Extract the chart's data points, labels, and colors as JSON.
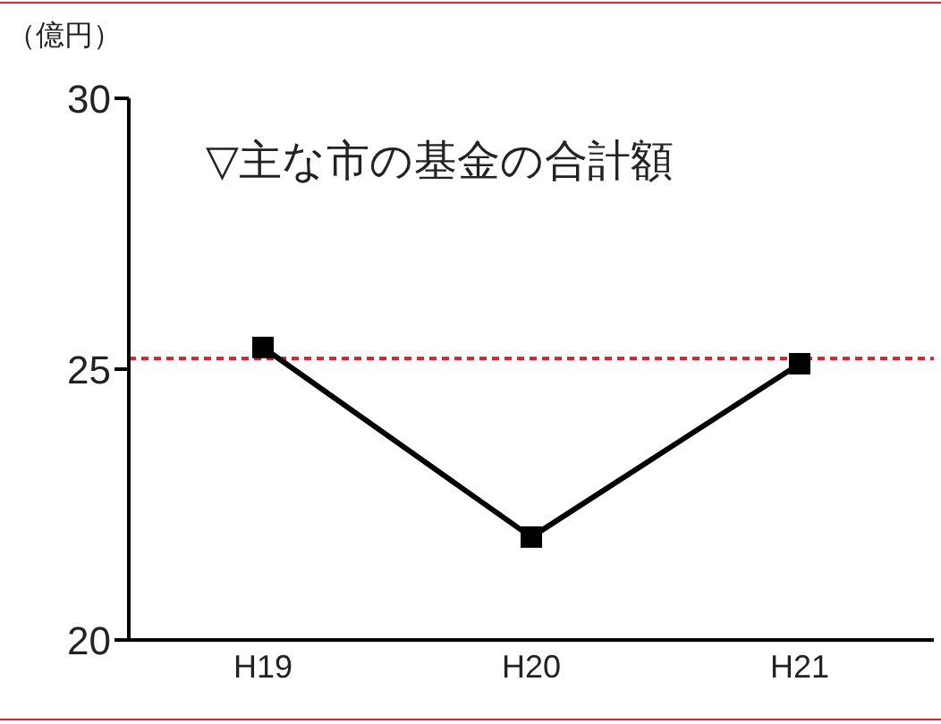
{
  "chart_data": {
    "type": "line",
    "title": "▽主な市の基金の合計額",
    "ylabel": "（億円）",
    "categories": [
      "H19",
      "H20",
      "H21"
    ],
    "series": [
      {
        "color": "#000000",
        "values": [
          25.4,
          21.9,
          25.1
        ]
      }
    ],
    "ylim": [
      20,
      30
    ],
    "yticks": [
      20,
      25,
      30
    ],
    "grid": false,
    "legend": false,
    "marker": "square",
    "line_style": "solid",
    "ref_lines": [
      {
        "axis": "y",
        "value": 25.2,
        "color": "#e8202a",
        "line_style": "dashed"
      }
    ]
  }
}
